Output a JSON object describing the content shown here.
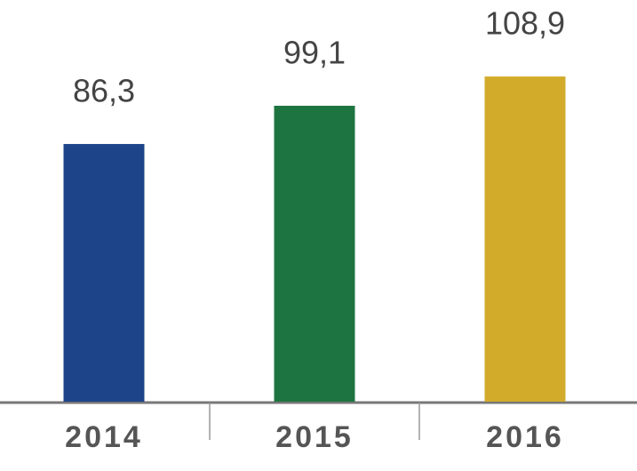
{
  "chart_data": {
    "type": "bar",
    "categories": [
      "2014",
      "2015",
      "2016"
    ],
    "values": [
      86.3,
      99.1,
      108.9
    ],
    "value_labels": [
      "86,3",
      "99,1",
      "108,9"
    ],
    "colors": [
      "#1d4489",
      "#1e7440",
      "#d2ab2b"
    ]
  }
}
